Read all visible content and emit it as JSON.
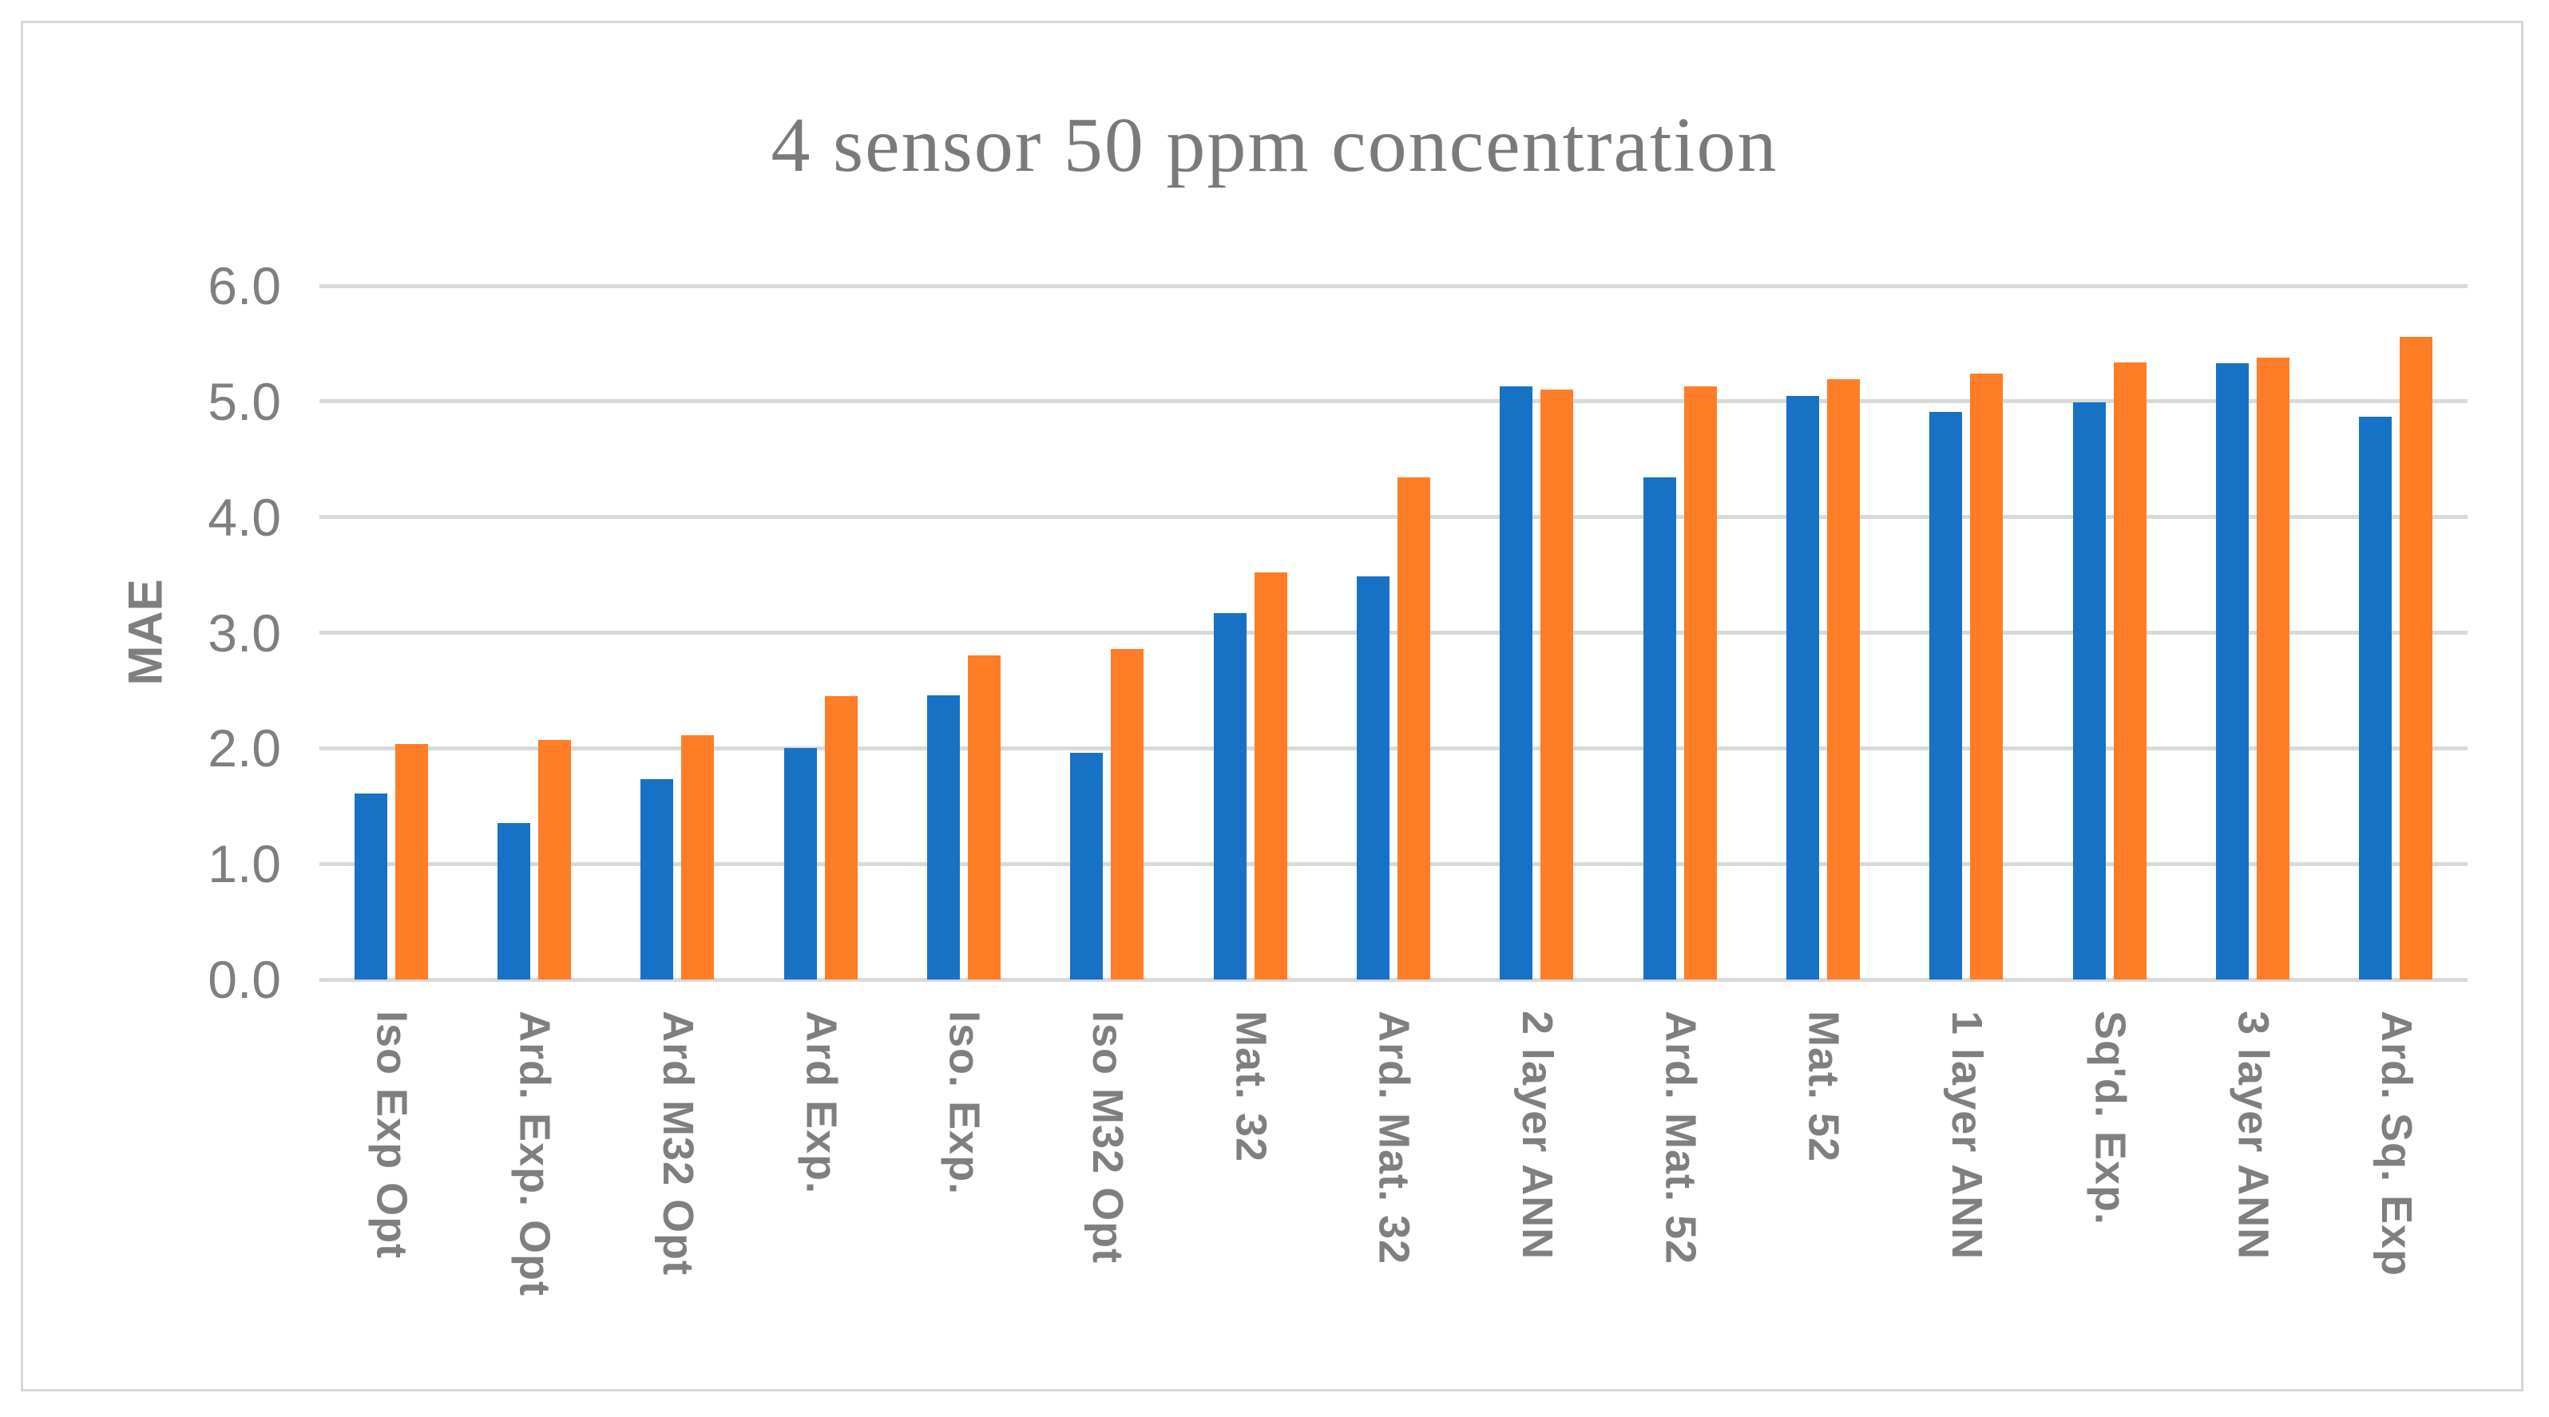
{
  "chart_data": {
    "type": "bar",
    "title": "4 sensor 50 ppm concentration",
    "xlabel": "",
    "ylabel": "MAE",
    "ylim": [
      0,
      6
    ],
    "grid": true,
    "legend_position": "none",
    "ytick_labels": [
      "6.0",
      "5.0",
      "4.0",
      "3.0",
      "2.0",
      "1.0",
      "0.0"
    ],
    "categories": [
      "Iso Exp Opt",
      "Ard. Exp. Opt",
      "Ard M32 Opt",
      "Ard Exp.",
      "Iso. Exp.",
      "Iso M32 Opt",
      "Mat. 32",
      "Ard. Mat. 32",
      "2 layer ANN",
      "Ard. Mat. 52",
      "Mat. 52",
      "1 layer ANN",
      "Sq'd. Exp.",
      "3 layer ANN",
      "Ard. Sq. Exp"
    ],
    "series": [
      {
        "name": "blue-series",
        "color": "#1772c6",
        "values": [
          1.61,
          1.35,
          1.73,
          2.0,
          2.46,
          1.96,
          3.17,
          3.49,
          5.13,
          4.34,
          5.05,
          4.91,
          4.99,
          5.33,
          4.87
        ]
      },
      {
        "name": "orange-series",
        "color": "#ff7d27",
        "values": [
          2.04,
          2.07,
          2.11,
          2.45,
          2.8,
          2.86,
          3.52,
          4.34,
          5.1,
          5.13,
          5.19,
          5.24,
          5.34,
          5.38,
          5.56
        ]
      }
    ]
  },
  "colors": {
    "gridline": "#d9d9d9",
    "axis_text": "#7f7f7f",
    "title_text": "#7a7a7a",
    "frame_border": "#d6d6d6",
    "background": "#ffffff"
  }
}
